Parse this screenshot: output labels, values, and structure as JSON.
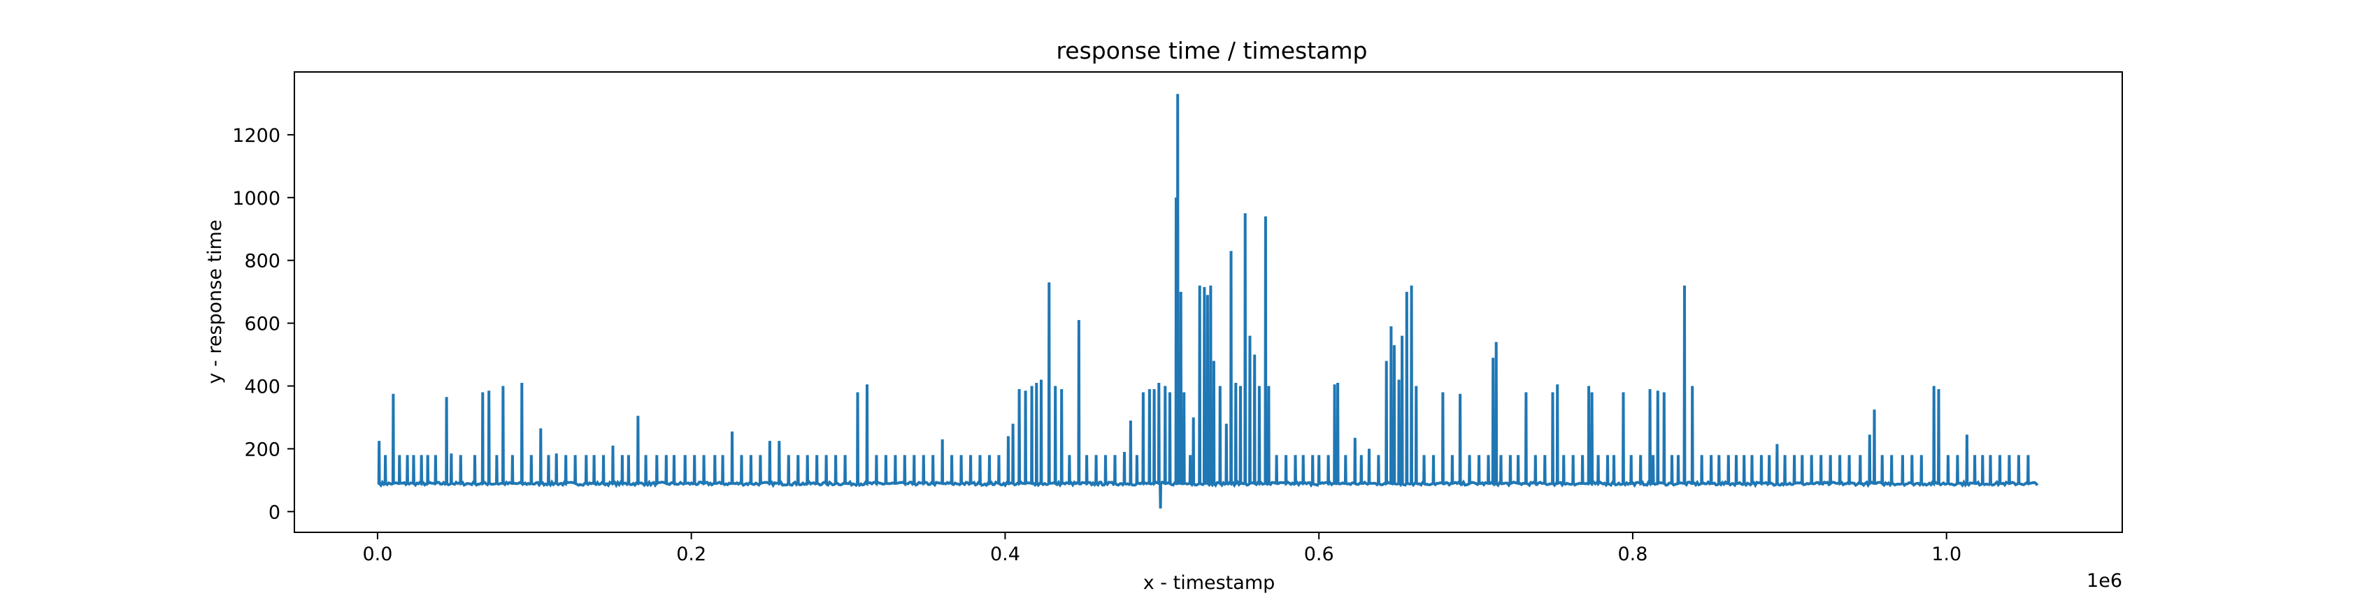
{
  "chart_data": {
    "type": "line",
    "title": "response time / timestamp",
    "xlabel": "x - timestamp",
    "ylabel": "y - response time",
    "x_offset_label": "1e6",
    "xlim": [
      -53000,
      1112000
    ],
    "ylim": [
      -66,
      1400
    ],
    "x_ticks": [
      0.0,
      0.2,
      0.4,
      0.6,
      0.8,
      1.0
    ],
    "x_tick_labels": [
      "0.0",
      "0.2",
      "0.4",
      "0.6",
      "0.8",
      "1.0"
    ],
    "y_ticks": [
      0,
      200,
      400,
      600,
      800,
      1000,
      1200
    ],
    "y_tick_labels": [
      "0",
      "200",
      "400",
      "600",
      "800",
      "1000",
      "1200"
    ],
    "grid": false,
    "legend": "none",
    "line_color": "#1f77b4",
    "series": [
      {
        "baseline": 90,
        "x_start": 0,
        "x_end": 1058000,
        "spikes": [
          [
            1000,
            225
          ],
          [
            5000,
            180
          ],
          [
            10000,
            375
          ],
          [
            14000,
            180
          ],
          [
            19000,
            180
          ],
          [
            23000,
            180
          ],
          [
            28000,
            180
          ],
          [
            32000,
            180
          ],
          [
            37000,
            180
          ],
          [
            44000,
            365
          ],
          [
            47000,
            185
          ],
          [
            53000,
            180
          ],
          [
            62000,
            180
          ],
          [
            67000,
            380
          ],
          [
            71000,
            385
          ],
          [
            76000,
            180
          ],
          [
            80000,
            400
          ],
          [
            86000,
            180
          ],
          [
            92000,
            410
          ],
          [
            98000,
            180
          ],
          [
            104000,
            265
          ],
          [
            109000,
            180
          ],
          [
            114000,
            185
          ],
          [
            120000,
            180
          ],
          [
            126000,
            180
          ],
          [
            133000,
            180
          ],
          [
            138000,
            180
          ],
          [
            144000,
            180
          ],
          [
            150000,
            210
          ],
          [
            156000,
            180
          ],
          [
            160000,
            180
          ],
          [
            166000,
            305
          ],
          [
            171000,
            180
          ],
          [
            178000,
            180
          ],
          [
            184000,
            180
          ],
          [
            189000,
            180
          ],
          [
            196000,
            180
          ],
          [
            202000,
            180
          ],
          [
            208000,
            180
          ],
          [
            215000,
            180
          ],
          [
            220000,
            180
          ],
          [
            226000,
            255
          ],
          [
            232000,
            180
          ],
          [
            238000,
            180
          ],
          [
            244000,
            180
          ],
          [
            250000,
            225
          ],
          [
            256000,
            225
          ],
          [
            262000,
            180
          ],
          [
            268000,
            180
          ],
          [
            274000,
            180
          ],
          [
            280000,
            180
          ],
          [
            286000,
            180
          ],
          [
            292000,
            180
          ],
          [
            298000,
            180
          ],
          [
            306000,
            380
          ],
          [
            312000,
            405
          ],
          [
            318000,
            180
          ],
          [
            324000,
            180
          ],
          [
            330000,
            180
          ],
          [
            336000,
            180
          ],
          [
            342000,
            180
          ],
          [
            348000,
            180
          ],
          [
            354000,
            180
          ],
          [
            360000,
            230
          ],
          [
            366000,
            180
          ],
          [
            372000,
            180
          ],
          [
            378000,
            180
          ],
          [
            384000,
            180
          ],
          [
            390000,
            180
          ],
          [
            396000,
            180
          ],
          [
            402000,
            240
          ],
          [
            405000,
            280
          ],
          [
            409000,
            390
          ],
          [
            413000,
            385
          ],
          [
            417000,
            400
          ],
          [
            420000,
            410
          ],
          [
            423000,
            420
          ],
          [
            428000,
            730
          ],
          [
            432000,
            400
          ],
          [
            436000,
            390
          ],
          [
            441000,
            180
          ],
          [
            447000,
            610
          ],
          [
            452000,
            180
          ],
          [
            458000,
            180
          ],
          [
            464000,
            180
          ],
          [
            470000,
            180
          ],
          [
            476000,
            190
          ],
          [
            480000,
            290
          ],
          [
            484000,
            180
          ],
          [
            488000,
            380
          ],
          [
            492000,
            390
          ],
          [
            495000,
            390
          ],
          [
            498000,
            410
          ],
          [
            502000,
            400
          ],
          [
            505000,
            380
          ],
          [
            509000,
            1000
          ],
          [
            510000,
            1330
          ],
          [
            512000,
            700
          ],
          [
            514000,
            380
          ],
          [
            518000,
            180
          ],
          [
            520000,
            300
          ],
          [
            524000,
            720
          ],
          [
            527000,
            715
          ],
          [
            529000,
            690
          ],
          [
            531000,
            720
          ],
          [
            533000,
            480
          ],
          [
            537000,
            400
          ],
          [
            541000,
            280
          ],
          [
            544000,
            830
          ],
          [
            547000,
            410
          ],
          [
            550000,
            400
          ],
          [
            553000,
            950
          ],
          [
            556000,
            560
          ],
          [
            559000,
            500
          ],
          [
            562000,
            400
          ],
          [
            566000,
            940
          ],
          [
            568000,
            400
          ],
          [
            573000,
            180
          ],
          [
            579000,
            180
          ],
          [
            585000,
            180
          ],
          [
            590000,
            180
          ],
          [
            596000,
            180
          ],
          [
            600000,
            180
          ],
          [
            606000,
            180
          ],
          [
            610000,
            405
          ],
          [
            612000,
            410
          ],
          [
            617000,
            180
          ],
          [
            623000,
            235
          ],
          [
            627000,
            180
          ],
          [
            632000,
            200
          ],
          [
            638000,
            180
          ],
          [
            643000,
            480
          ],
          [
            646000,
            590
          ],
          [
            648000,
            530
          ],
          [
            651000,
            420
          ],
          [
            653000,
            560
          ],
          [
            656000,
            700
          ],
          [
            659000,
            720
          ],
          [
            662000,
            400
          ],
          [
            667000,
            180
          ],
          [
            673000,
            180
          ],
          [
            679000,
            380
          ],
          [
            685000,
            180
          ],
          [
            690000,
            375
          ],
          [
            696000,
            180
          ],
          [
            702000,
            180
          ],
          [
            708000,
            180
          ],
          [
            711000,
            490
          ],
          [
            713000,
            540
          ],
          [
            716000,
            180
          ],
          [
            722000,
            180
          ],
          [
            727000,
            180
          ],
          [
            732000,
            380
          ],
          [
            738000,
            180
          ],
          [
            744000,
            180
          ],
          [
            749000,
            380
          ],
          [
            752000,
            405
          ],
          [
            756000,
            180
          ],
          [
            762000,
            180
          ],
          [
            768000,
            180
          ],
          [
            772000,
            400
          ],
          [
            774000,
            380
          ],
          [
            778000,
            180
          ],
          [
            784000,
            180
          ],
          [
            788000,
            180
          ],
          [
            794000,
            380
          ],
          [
            799000,
            180
          ],
          [
            805000,
            180
          ],
          [
            811000,
            390
          ],
          [
            813000,
            180
          ],
          [
            816000,
            385
          ],
          [
            820000,
            380
          ],
          [
            825000,
            180
          ],
          [
            829000,
            180
          ],
          [
            833000,
            720
          ],
          [
            838000,
            400
          ],
          [
            844000,
            180
          ],
          [
            850000,
            180
          ],
          [
            855000,
            180
          ],
          [
            861000,
            180
          ],
          [
            866000,
            180
          ],
          [
            871000,
            180
          ],
          [
            876000,
            180
          ],
          [
            882000,
            180
          ],
          [
            887000,
            180
          ],
          [
            892000,
            215
          ],
          [
            897000,
            180
          ],
          [
            903000,
            180
          ],
          [
            908000,
            180
          ],
          [
            914000,
            180
          ],
          [
            920000,
            180
          ],
          [
            926000,
            180
          ],
          [
            932000,
            180
          ],
          [
            938000,
            180
          ],
          [
            945000,
            180
          ],
          [
            951000,
            245
          ],
          [
            954000,
            325
          ],
          [
            959000,
            180
          ],
          [
            965000,
            180
          ],
          [
            972000,
            180
          ],
          [
            978000,
            180
          ],
          [
            984000,
            180
          ],
          [
            992000,
            400
          ],
          [
            995000,
            390
          ],
          [
            1001000,
            180
          ],
          [
            1007000,
            180
          ],
          [
            1013000,
            245
          ],
          [
            1018000,
            180
          ],
          [
            1023000,
            180
          ],
          [
            1028000,
            180
          ],
          [
            1034000,
            180
          ],
          [
            1040000,
            180
          ],
          [
            1046000,
            180
          ],
          [
            1052000,
            180
          ]
        ],
        "dips": [
          [
            499000,
            10
          ]
        ]
      }
    ]
  }
}
